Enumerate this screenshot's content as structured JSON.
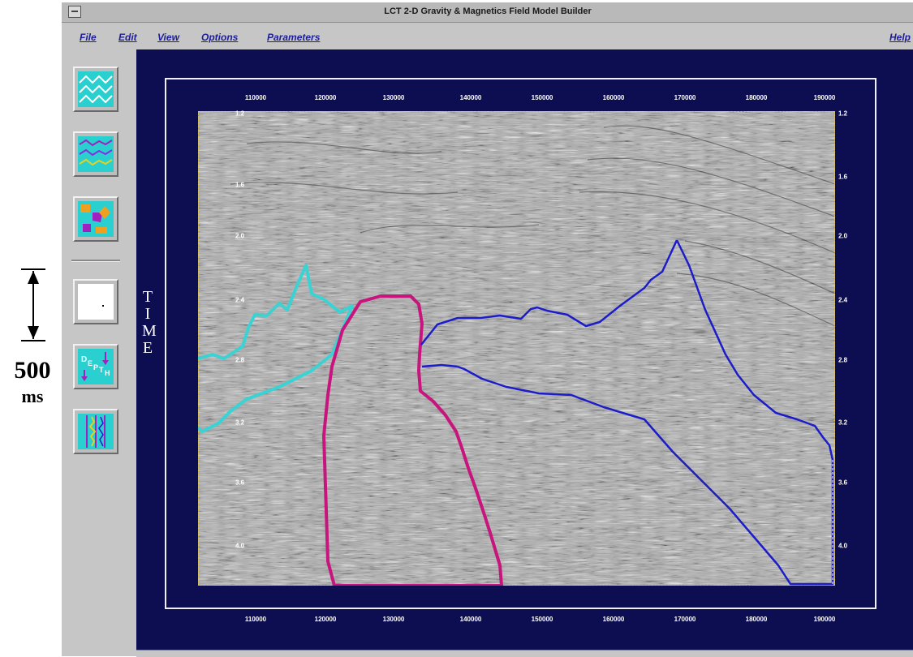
{
  "scale_bar": {
    "value": "500",
    "unit": "ms"
  },
  "window": {
    "title": "LCT 2-D Gravity & Magnetics Field Model Builder"
  },
  "menu": {
    "file": "File",
    "edit": "Edit",
    "view": "View",
    "options": "Options",
    "parameters": "Parameters",
    "help": "Help"
  },
  "toolbar": [
    {
      "icon": "wave-lines-icon"
    },
    {
      "icon": "horizon-lines-icon"
    },
    {
      "icon": "polygon-shapes-icon"
    },
    {
      "icon": "blank-canvas-icon"
    },
    {
      "icon": "depth-icon"
    },
    {
      "icon": "well-log-icon"
    }
  ],
  "plot": {
    "axis_title": "TIME",
    "x_ticks_top": [
      "110000",
      "120000",
      "130000",
      "140000",
      "150000",
      "160000",
      "170000",
      "180000",
      "190000"
    ],
    "x_ticks_bottom": [
      "110000",
      "120000",
      "130000",
      "140000",
      "150000",
      "160000",
      "170000",
      "180000",
      "190000"
    ],
    "y_ticks_left": [
      "1.2",
      "1.6",
      "2.0",
      "2.4",
      "2.8",
      "3.2",
      "3.6",
      "4.0"
    ],
    "y_ticks_right": [
      "1.2",
      "1.6",
      "2.0",
      "2.4",
      "2.8",
      "3.2",
      "3.6",
      "4.0"
    ],
    "colors": {
      "salt_body": "#c8157e",
      "cyan_body": "#3ad2d2",
      "blue_horizon": "#1c1cc8",
      "frame": "#0d0d52"
    }
  }
}
